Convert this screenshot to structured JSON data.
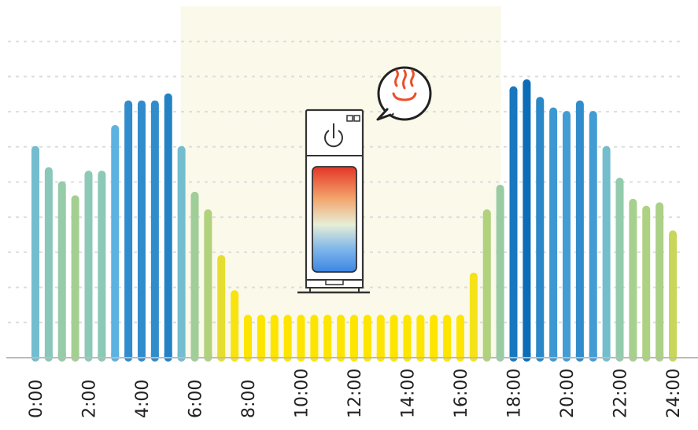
{
  "chart_data": {
    "type": "bar",
    "x_tick_labels": [
      "0:00",
      "2:00",
      "4:00",
      "6:00",
      "8:00",
      "10:00",
      "12:00",
      "14:00",
      "16:00",
      "18:00",
      "20:00",
      "22:00",
      "24:00"
    ],
    "x": [
      0,
      0.5,
      1,
      1.5,
      2,
      2.5,
      3,
      3.5,
      4,
      4.5,
      5,
      5.5,
      6,
      6.5,
      7,
      7.5,
      8,
      8.5,
      9,
      9.5,
      10,
      10.5,
      11,
      11.5,
      12,
      12.5,
      13,
      13.5,
      14,
      14.5,
      15,
      15.5,
      16,
      16.5,
      17,
      17.5,
      18,
      18.5,
      19,
      19.5,
      20,
      20.5,
      21,
      21.5,
      22,
      22.5,
      23,
      23.5,
      24
    ],
    "values": [
      6.0,
      5.4,
      5.0,
      4.6,
      5.3,
      5.3,
      6.6,
      7.3,
      7.3,
      7.3,
      7.5,
      6.0,
      4.7,
      4.2,
      2.9,
      1.9,
      1.2,
      1.2,
      1.2,
      1.2,
      1.2,
      1.2,
      1.2,
      1.2,
      1.2,
      1.2,
      1.2,
      1.2,
      1.2,
      1.2,
      1.2,
      1.2,
      1.2,
      2.4,
      4.2,
      4.9,
      7.7,
      7.9,
      7.4,
      7.1,
      7.0,
      7.3,
      7.0,
      6.0,
      5.1,
      4.5,
      4.3,
      4.4,
      3.6
    ],
    "xlim": [
      0,
      24
    ],
    "ylim": [
      0,
      10
    ],
    "grid": true,
    "highlight_range": [
      5.5,
      17.5
    ],
    "colors": {
      "background": "#ffffff",
      "highlight": "#fbf9ea",
      "grid": "#dddddd",
      "axis": "#bbbbbb",
      "bar_ramp": [
        "#0b6cb8",
        "#5fb4e2",
        "#8fcab4",
        "#bcd46b",
        "#f4e21c",
        "#fde500"
      ],
      "heater_gradient": [
        "#e43526",
        "#f3a46b",
        "#e7eed6",
        "#7fb7ea",
        "#3c86e3"
      ],
      "steam": "#e8502b"
    },
    "icons": [
      "water-heater-icon",
      "power-icon",
      "hot-spring-icon",
      "speech-bubble-icon"
    ]
  }
}
